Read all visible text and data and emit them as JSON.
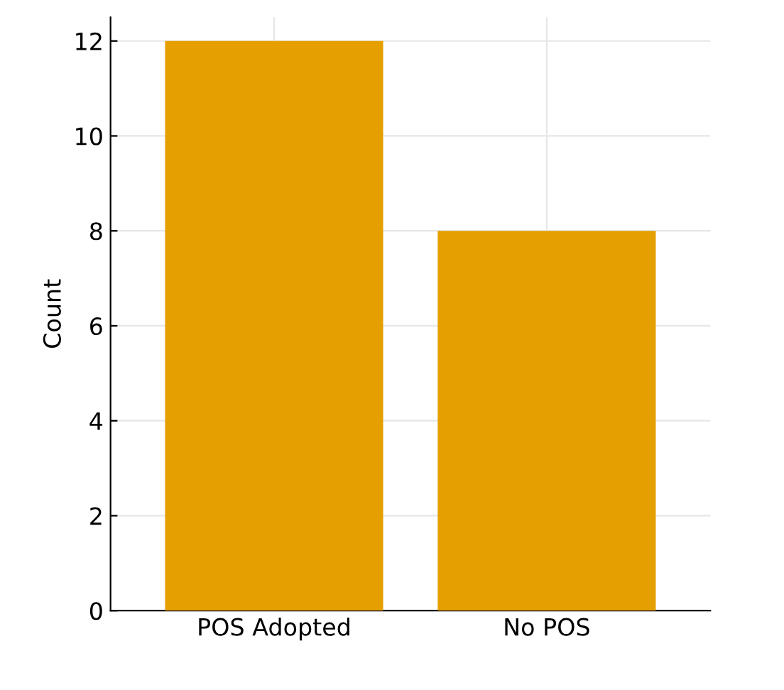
{
  "chart_data": {
    "type": "bar",
    "ylabel": "Count",
    "categories": [
      "POS Adopted",
      "No POS"
    ],
    "values": [
      12,
      8
    ],
    "color": "#e69f00",
    "ylim": [
      0,
      12.5
    ],
    "yticks": [
      0,
      2,
      4,
      6,
      8,
      10,
      12
    ],
    "grid": true
  }
}
